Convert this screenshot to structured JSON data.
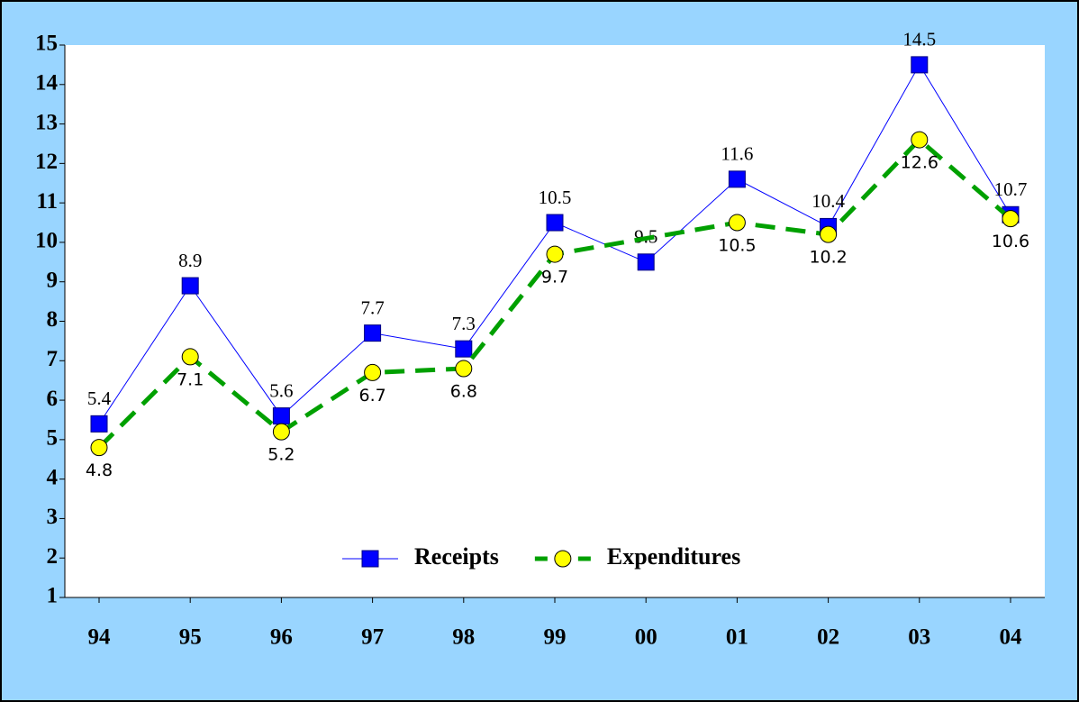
{
  "chart_data": {
    "type": "line",
    "categories": [
      "94",
      "95",
      "96",
      "97",
      "98",
      "99",
      "00",
      "01",
      "02",
      "03",
      "04"
    ],
    "series": [
      {
        "name": "Receipts",
        "color": "#0000ff",
        "values": [
          5.4,
          8.9,
          5.6,
          7.7,
          7.3,
          10.5,
          9.5,
          11.6,
          10.4,
          14.5,
          10.7
        ]
      },
      {
        "name": "Expenditures",
        "color": "#00a000",
        "marker_color": "#ffff00",
        "values": [
          4.8,
          7.1,
          5.2,
          6.7,
          6.8,
          9.7,
          10.1,
          10.5,
          10.2,
          12.6,
          10.6
        ],
        "value_labels": [
          "4.8",
          "7.1",
          "5.2",
          "6.7",
          "6.8",
          "9.7",
          null,
          "10.5",
          "10.2",
          "12.6",
          "10.6"
        ]
      }
    ],
    "ylim": [
      1,
      15
    ],
    "yticks": [
      1,
      2,
      3,
      4,
      5,
      6,
      7,
      8,
      9,
      10,
      11,
      12,
      13,
      14,
      15
    ],
    "legend": "bottom"
  }
}
